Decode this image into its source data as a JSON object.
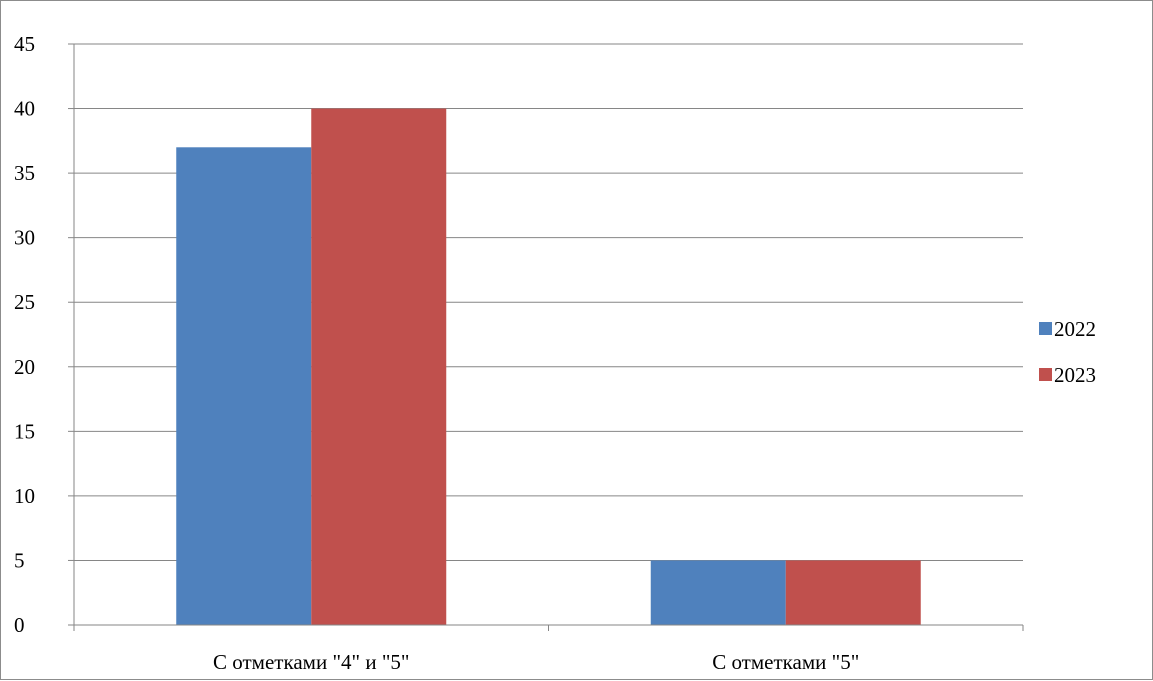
{
  "chart_data": {
    "type": "bar",
    "title": "",
    "xlabel": "",
    "ylabel": "",
    "categories": [
      "С отметками \"4\" и \"5\"",
      "С отметками \"5\""
    ],
    "series": [
      {
        "name": "2022",
        "values": [
          37,
          5
        ],
        "color": "#4F81BD"
      },
      {
        "name": "2023",
        "values": [
          40,
          5
        ],
        "color": "#C0504D"
      }
    ],
    "ylim": [
      0,
      45
    ],
    "yticks": [
      0,
      5,
      10,
      15,
      20,
      25,
      30,
      35,
      40,
      45
    ],
    "grid": true,
    "legend_position": "right"
  }
}
